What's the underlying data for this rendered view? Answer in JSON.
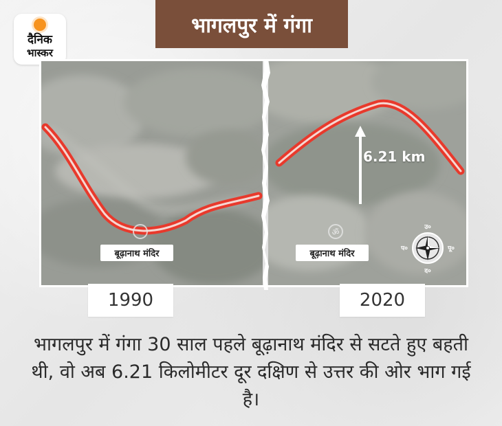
{
  "logo": {
    "line1": "दैनिक",
    "line2": "भास्कर"
  },
  "title": "भागलपुर में गंगा",
  "left_panel": {
    "place_label": "बूढ़ानाथ मंदिर",
    "year": "1990"
  },
  "right_panel": {
    "place_label": "बूढ़ानाथ मंदिर",
    "year": "2020",
    "distance": "6.21 km"
  },
  "compass": {
    "north": "उ०",
    "south": "द०",
    "east": "पू०",
    "west": "प०"
  },
  "caption": "भागलपुर में गंगा 30 साल पहले बूढ़ानाथ मंदिर से सटते हुए बहती थी, वो अब 6.21 किलोमीटर दूर दक्षिण से उत्तर की ओर भाग गई है।",
  "colors": {
    "title_bg": "#7a4f3a",
    "river": "#e8392c",
    "accent_sun": "#f7931e"
  }
}
